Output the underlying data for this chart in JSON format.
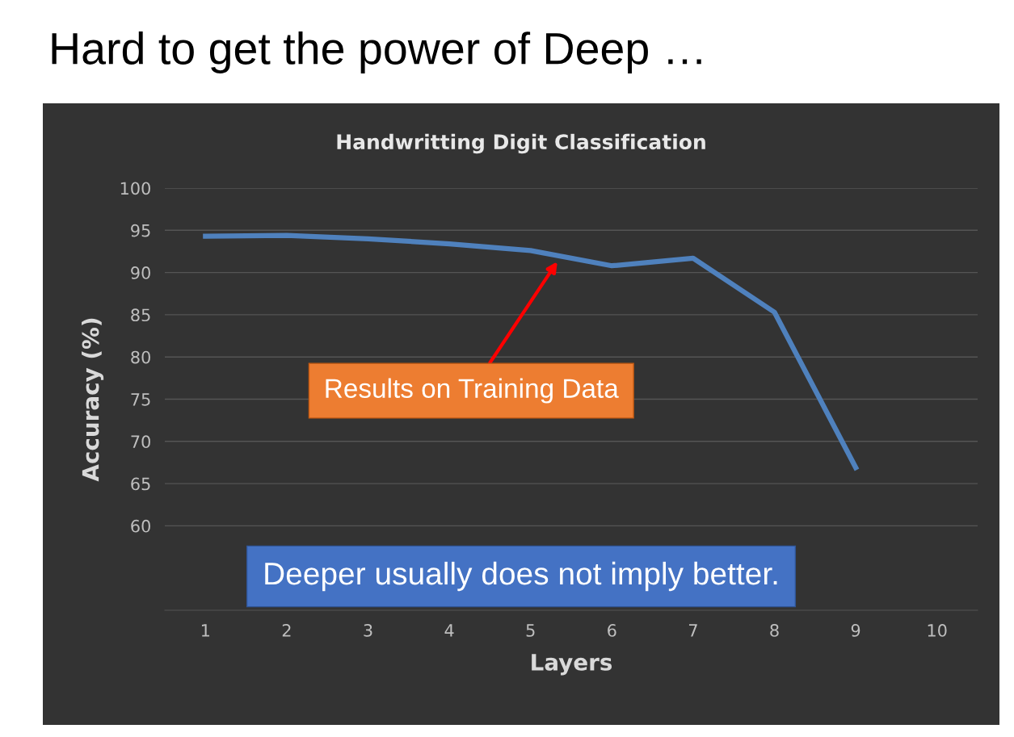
{
  "chart_data": {
    "type": "line",
    "title": "Hard to get the power of Deep …",
    "subtitle": "Handwritting Digit Classification",
    "xlabel": "Layers",
    "ylabel": "Accuracy (%)",
    "x": [
      1,
      2,
      3,
      4,
      5,
      6,
      7,
      8,
      9
    ],
    "series": [
      {
        "color": "#4f81bd",
        "values": [
          94.3,
          94.4,
          94.0,
          93.4,
          92.6,
          90.8,
          91.7,
          85.3,
          66.9
        ]
      }
    ],
    "xlim": [
      0.5,
      10.5
    ],
    "xticks": [
      1,
      2,
      3,
      4,
      5,
      6,
      7,
      8,
      9,
      10
    ],
    "ylim": [
      50,
      100
    ],
    "yticks": [
      60,
      65,
      70,
      75,
      80,
      85,
      90,
      95,
      100
    ],
    "grid": "y",
    "marker": "none",
    "line_style": "solid",
    "annotations": [
      {
        "text": "Results on Training Data",
        "x": 5.33,
        "y": 91.3
      },
      "Deeper usually does not imply better."
    ]
  }
}
